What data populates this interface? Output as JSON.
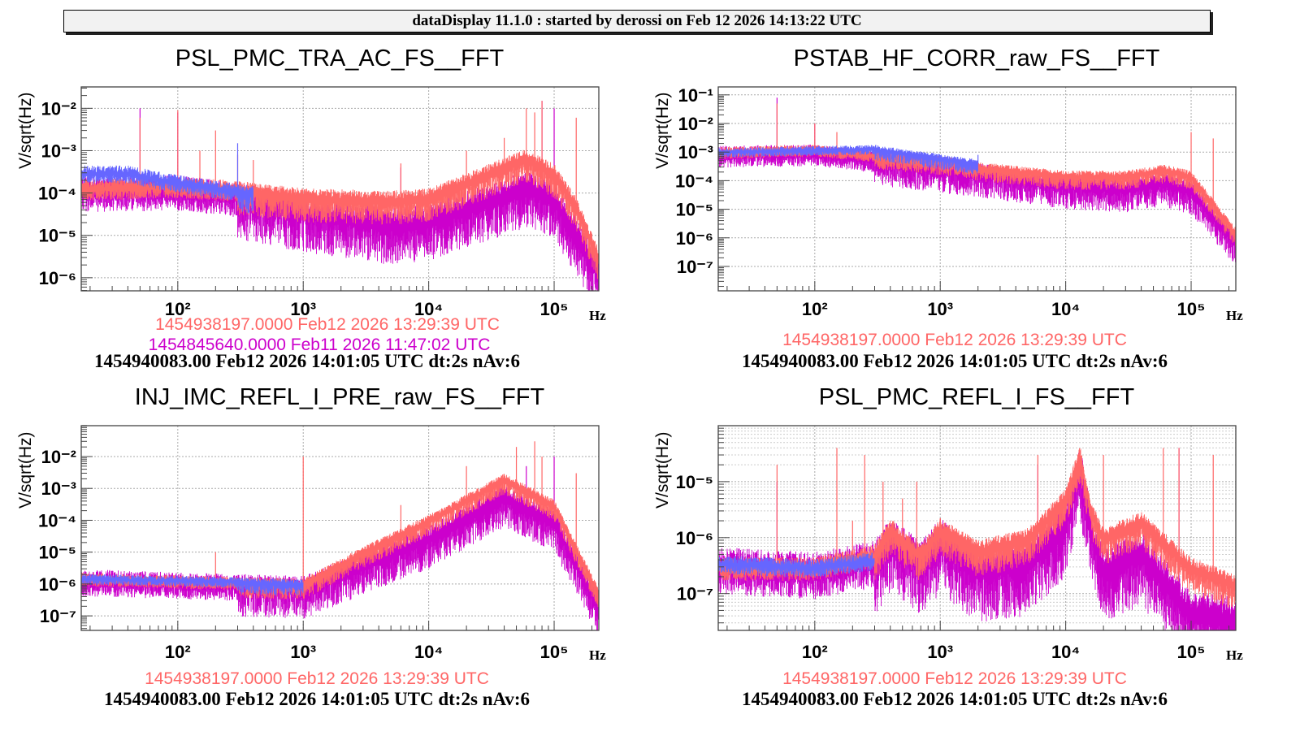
{
  "header": {
    "text": "dataDisplay 11.1.0 : started by derossi on Feb 12 2026 14:13:22 UTC"
  },
  "colors": {
    "reference": "#ff6666",
    "reference2": "#cc00cc",
    "current": "#6666ff"
  },
  "chart_data": [
    {
      "type": "line",
      "title": "PSL_PMC_TRA_AC_FS__FFT",
      "ylabel": "V/sqrt(Hz)",
      "xlabel": "Hz",
      "xscale": "log",
      "yscale": "log",
      "xlim": [
        17,
        227000
      ],
      "ylim": [
        4.9e-07,
        0.032
      ],
      "xticks": [
        100,
        1000,
        10000,
        100000
      ],
      "yticks": [
        0.01,
        0.001,
        0.0001,
        1e-05,
        1e-06
      ],
      "grid": true,
      "legend": [
        "1454938197.0000 Feb12 2026 13:29:39 UTC",
        "1454845640.0000 Feb11 2026 11:47:02 UTC"
      ],
      "stamp": "1454940083.00 Feb12 2026 14:01:05 UTC dt:2s nAv:6",
      "series": [
        {
          "color": "#cc00cc",
          "spread": 1.0,
          "points": [
            [
              17,
              0.00011
            ],
            [
              100,
              0.00012
            ],
            [
              300,
              8e-05
            ],
            [
              1000,
              4e-05
            ],
            [
              5000,
              2e-05
            ],
            [
              10000,
              2.5e-05
            ],
            [
              60000,
              0.00015
            ],
            [
              100000,
              8e-05
            ],
            [
              227000,
              1.5e-06
            ]
          ],
          "spikes": [
            [
              50,
              0.01
            ],
            [
              100,
              0.008
            ],
            [
              6000,
              0.0004
            ],
            [
              80000,
              0.015
            ],
            [
              100000,
              0.01
            ]
          ]
        },
        {
          "color": "#ff6666",
          "spread": 0.6,
          "points": [
            [
              17,
              0.00013
            ],
            [
              100,
              0.00015
            ],
            [
              300,
              0.00012
            ],
            [
              1000,
              8e-05
            ],
            [
              5000,
              7e-05
            ],
            [
              10000,
              8e-05
            ],
            [
              30000,
              0.0003
            ],
            [
              60000,
              0.0007
            ],
            [
              100000,
              0.0003
            ],
            [
              150000,
              5e-05
            ],
            [
              227000,
              3e-06
            ]
          ],
          "spikes": [
            [
              50,
              0.006
            ],
            [
              100,
              0.009
            ],
            [
              150,
              0.001
            ],
            [
              200,
              0.003
            ],
            [
              300,
              0.0008
            ],
            [
              400,
              0.0006
            ],
            [
              6000,
              0.0005
            ],
            [
              20000,
              0.001
            ],
            [
              40000,
              0.002
            ],
            [
              60000,
              0.01
            ],
            [
              70000,
              0.008
            ],
            [
              80000,
              0.015
            ],
            [
              150000,
              0.006
            ]
          ]
        },
        {
          "color": "#6666ff",
          "spread": 0.5,
          "points": [
            [
              17,
              0.0003
            ],
            [
              40,
              0.0003
            ],
            [
              80,
              0.0002
            ],
            [
              200,
              0.00013
            ],
            [
              400,
              0.0001
            ]
          ],
          "spikes": [
            [
              300,
              0.0015
            ]
          ]
        }
      ]
    },
    {
      "type": "line",
      "title": "PSTAB_HF_CORR_raw_FS__FFT",
      "ylabel": "V/sqrt(Hz)",
      "xlabel": "Hz",
      "xscale": "log",
      "yscale": "log",
      "xlim": [
        17,
        227000
      ],
      "ylim": [
        1.4e-08,
        0.19
      ],
      "xticks": [
        100,
        1000,
        10000,
        100000
      ],
      "yticks": [
        0.1,
        0.01,
        0.001,
        0.0001,
        1e-05,
        1e-06,
        1e-07
      ],
      "grid": true,
      "legend": [
        "1454938197.0000 Feb12 2026 13:29:39 UTC"
      ],
      "stamp": "1454940083.00 Feb12 2026 14:01:05 UTC dt:2s nAv:6",
      "series": [
        {
          "color": "#cc00cc",
          "spread": 0.9,
          "points": [
            [
              17,
              0.0008
            ],
            [
              100,
              0.0009
            ],
            [
              1000,
              0.0003
            ],
            [
              2000,
              0.0002
            ],
            [
              10000,
              8e-05
            ],
            [
              30000,
              6e-05
            ],
            [
              60000,
              0.0001
            ],
            [
              100000,
              5e-05
            ],
            [
              227000,
              8e-07
            ]
          ],
          "spikes": [
            [
              50,
              0.08
            ],
            [
              100,
              0.01
            ]
          ]
        },
        {
          "color": "#ff6666",
          "spread": 0.5,
          "points": [
            [
              17,
              0.001
            ],
            [
              100,
              0.0012
            ],
            [
              1000,
              0.0005
            ],
            [
              2000,
              0.0003
            ],
            [
              10000,
              0.00015
            ],
            [
              30000,
              0.00015
            ],
            [
              60000,
              0.00025
            ],
            [
              100000,
              0.00015
            ],
            [
              227000,
              1.5e-06
            ]
          ],
          "spikes": [
            [
              50,
              0.05
            ],
            [
              100,
              0.01
            ],
            [
              150,
              0.005
            ],
            [
              100000,
              0.005
            ],
            [
              150000,
              0.003
            ]
          ]
        },
        {
          "color": "#6666ff",
          "spread": 0.4,
          "points": [
            [
              17,
              0.001
            ],
            [
              300,
              0.0013
            ],
            [
              2000,
              0.0004
            ]
          ],
          "spikes": [
            [
              2000,
              0.0008
            ]
          ]
        }
      ]
    },
    {
      "type": "line",
      "title": "INJ_IMC_REFL_I_PRE_raw_FS__FFT",
      "ylabel": "V/sqrt(Hz)",
      "xlabel": "Hz",
      "xscale": "log",
      "yscale": "log",
      "xlim": [
        17,
        227000
      ],
      "ylim": [
        3.5e-08,
        0.093
      ],
      "xticks": [
        100,
        1000,
        10000,
        100000
      ],
      "yticks": [
        0.01,
        0.001,
        0.0001,
        1e-05,
        1e-06,
        1e-07
      ],
      "grid": true,
      "legend": [
        "1454938197.0000 Feb12 2026 13:29:39 UTC"
      ],
      "stamp": "1454940083.00 Feb12 2026 14:01:05 UTC dt:2s nAv:6",
      "series": [
        {
          "color": "#cc00cc",
          "spread": 1.0,
          "points": [
            [
              17,
              1.3e-06
            ],
            [
              1000,
              8e-07
            ],
            [
              10000,
              3e-05
            ],
            [
              40000,
              0.0006
            ],
            [
              100000,
              0.0001
            ],
            [
              227000,
              2e-07
            ]
          ],
          "spikes": [
            [
              60000,
              0.005
            ],
            [
              100000,
              0.01
            ]
          ]
        },
        {
          "color": "#ff6666",
          "spread": 0.5,
          "points": [
            [
              17,
              1.5e-06
            ],
            [
              1000,
              1e-06
            ],
            [
              3000,
              1e-05
            ],
            [
              10000,
              0.0001
            ],
            [
              40000,
              0.002
            ],
            [
              100000,
              0.0003
            ],
            [
              227000,
              5e-07
            ]
          ],
          "spikes": [
            [
              200,
              1e-05
            ],
            [
              1000,
              0.01
            ],
            [
              6000,
              0.0003
            ],
            [
              20000,
              0.005
            ],
            [
              50000,
              0.02
            ],
            [
              70000,
              0.03
            ],
            [
              80000,
              0.01
            ],
            [
              150000,
              0.003
            ]
          ]
        },
        {
          "color": "#6666ff",
          "spread": 0.4,
          "points": [
            [
              17,
              1.5e-06
            ],
            [
              300,
              1.2e-06
            ],
            [
              1000,
              1e-06
            ]
          ],
          "spikes": []
        }
      ]
    },
    {
      "type": "line",
      "title": "PSL_PMC_REFL_I_FS__FFT",
      "ylabel": "V/sqrt(Hz)",
      "xlabel": "Hz",
      "xscale": "log",
      "yscale": "log",
      "xlim": [
        17,
        227000
      ],
      "ylim": [
        2.2e-08,
        0.0001
      ],
      "xticks": [
        100,
        1000,
        10000,
        100000
      ],
      "yticks": [
        1e-05,
        1e-06,
        1e-07
      ],
      "grid": true,
      "legend": [
        "1454938197.0000 Feb12 2026 13:29:39 UTC"
      ],
      "stamp": "1454940083.00 Feb12 2026 14:01:05 UTC dt:2s nAv:6",
      "series": [
        {
          "color": "#cc00cc",
          "spread": 1.0,
          "points": [
            [
              17,
              3e-07
            ],
            [
              100,
              2.5e-07
            ],
            [
              300,
              4e-07
            ],
            [
              400,
              1e-06
            ],
            [
              700,
              4e-07
            ],
            [
              1000,
              1e-06
            ],
            [
              2000,
              3e-07
            ],
            [
              5000,
              4e-07
            ],
            [
              10000,
              2e-06
            ],
            [
              13000,
              2e-05
            ],
            [
              16000,
              1.5e-06
            ],
            [
              20000,
              3e-07
            ],
            [
              40000,
              6e-07
            ],
            [
              100000,
              5e-08
            ],
            [
              227000,
              4e-08
            ]
          ],
          "spikes": [
            [
              50,
              1e-05
            ],
            [
              6000,
              2e-05
            ],
            [
              80000,
              4e-05
            ]
          ]
        },
        {
          "color": "#ff6666",
          "spread": 0.5,
          "points": [
            [
              17,
              3e-07
            ],
            [
              100,
              3e-07
            ],
            [
              300,
              5e-07
            ],
            [
              400,
              1.5e-06
            ],
            [
              700,
              5e-07
            ],
            [
              1000,
              1.5e-06
            ],
            [
              2000,
              6e-07
            ],
            [
              5000,
              1e-06
            ],
            [
              10000,
              5e-06
            ],
            [
              13000,
              3e-05
            ],
            [
              16000,
              3e-06
            ],
            [
              20000,
              1e-06
            ],
            [
              40000,
              2e-06
            ],
            [
              100000,
              3e-07
            ],
            [
              227000,
              1.5e-07
            ]
          ],
          "spikes": [
            [
              50,
              2e-05
            ],
            [
              150,
              4e-05
            ],
            [
              200,
              2e-06
            ],
            [
              250,
              3e-05
            ],
            [
              350,
              1e-05
            ],
            [
              500,
              5e-06
            ],
            [
              650,
              1e-05
            ],
            [
              6000,
              3e-05
            ],
            [
              20000,
              3e-05
            ],
            [
              60000,
              4e-05
            ],
            [
              80000,
              4e-05
            ],
            [
              150000,
              3e-05
            ]
          ]
        },
        {
          "color": "#6666ff",
          "spread": 0.4,
          "points": [
            [
              17,
              3.5e-07
            ],
            [
              100,
              3e-07
            ],
            [
              300,
              4e-07
            ]
          ],
          "spikes": []
        }
      ]
    }
  ]
}
